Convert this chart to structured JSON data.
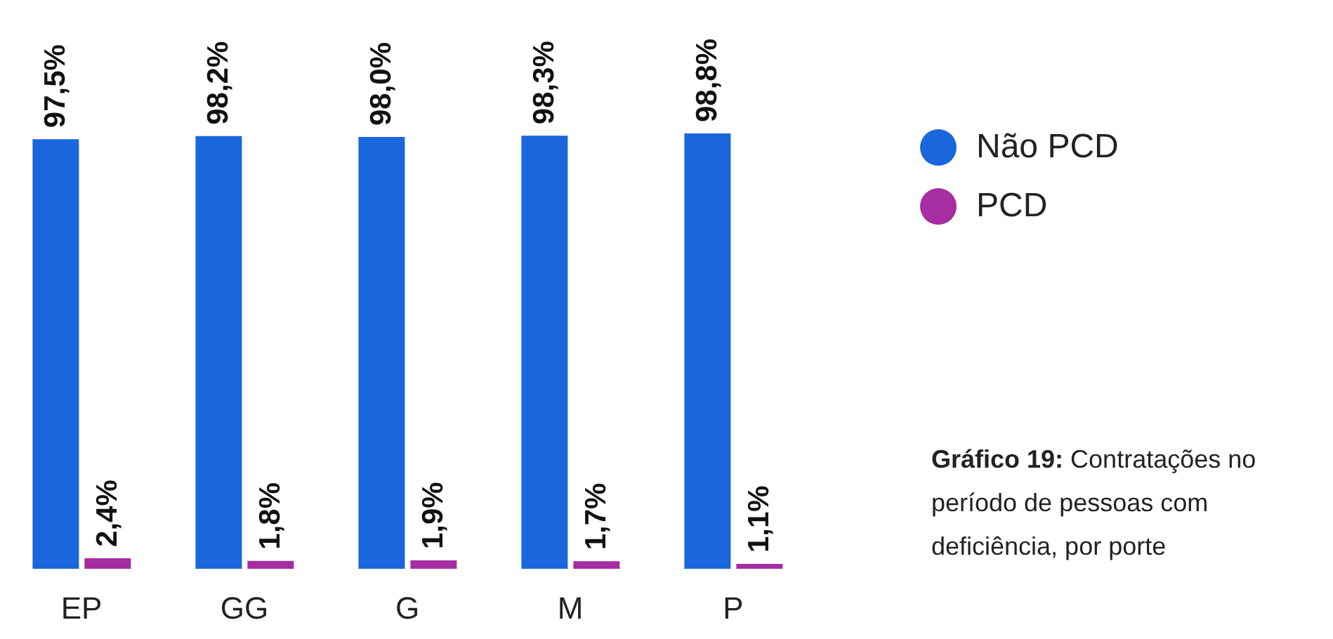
{
  "chart_data": {
    "type": "bar",
    "categories": [
      "EP",
      "GG",
      "G",
      "M",
      "P"
    ],
    "series": [
      {
        "name": "Não PCD",
        "color": "#1a66dd",
        "values": [
          97.5,
          98.2,
          98.0,
          98.3,
          98.8
        ],
        "value_labels": [
          "97,5%",
          "98,2%",
          "98,0%",
          "98,3%",
          "98,8%"
        ]
      },
      {
        "name": "PCD",
        "color": "#a62ea2",
        "values": [
          2.4,
          1.8,
          1.9,
          1.7,
          1.1
        ],
        "value_labels": [
          "2,4%",
          "1,8%",
          "1,9%",
          "1,7%",
          "1,1%"
        ]
      }
    ],
    "legend": "top right",
    "tick_labels": "x",
    "annotations": [
      "Gráfico 19: Contratações no período de pessoas com deficiência, por porte"
    ]
  }
}
